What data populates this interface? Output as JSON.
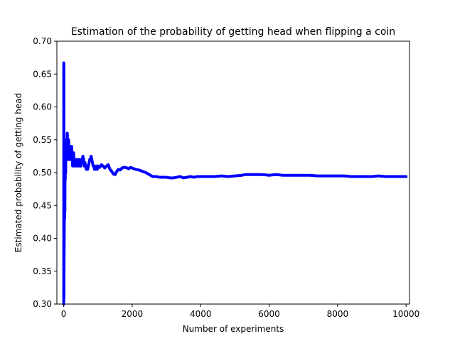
{
  "chart_data": {
    "type": "scatter",
    "title": "Estimation of the probability of getting head when flipping a coin",
    "xlabel": "Number of experiments",
    "ylabel": "Estimated probability of getting head",
    "xlim": [
      -200,
      10100
    ],
    "ylim": [
      0.3,
      0.7
    ],
    "xticks": [
      0,
      2000,
      4000,
      6000,
      8000,
      10000
    ],
    "xtick_labels": [
      "0",
      "2000",
      "4000",
      "6000",
      "8000",
      "10000"
    ],
    "yticks": [
      0.3,
      0.35,
      0.4,
      0.45,
      0.5,
      0.55,
      0.6,
      0.65,
      0.7
    ],
    "ytick_labels": [
      "0.30",
      "0.35",
      "0.40",
      "0.45",
      "0.50",
      "0.55",
      "0.60",
      "0.65",
      "0.70"
    ],
    "grid": false,
    "legend": "none",
    "marker_color": "#0000ff",
    "series": [
      {
        "x": [
          1,
          2,
          3,
          4,
          5,
          6,
          7,
          8,
          10,
          12,
          14,
          16,
          18,
          20,
          22,
          25,
          28,
          30,
          33,
          36,
          40,
          44,
          48,
          52,
          56,
          60,
          65,
          70,
          75,
          80,
          85,
          90,
          95,
          100,
          105,
          110,
          115,
          120,
          125,
          130,
          135,
          140,
          145,
          150,
          160,
          170,
          180,
          190,
          200,
          215,
          230,
          245,
          260,
          275,
          290,
          300,
          320,
          340,
          360,
          380,
          400,
          420,
          440,
          460,
          480,
          500,
          520,
          540,
          560,
          580,
          600,
          620,
          640,
          660,
          680,
          700,
          720,
          740,
          760,
          780,
          800,
          820,
          840,
          860,
          880,
          900,
          920,
          940,
          960,
          980,
          1000,
          1050,
          1100,
          1150,
          1200,
          1250,
          1300,
          1350,
          1400,
          1450,
          1500,
          1550,
          1600,
          1650,
          1700,
          1750,
          1800,
          1850,
          1900,
          1950,
          2000,
          2100,
          2200,
          2300,
          2400,
          2500,
          2600,
          2700,
          2800,
          2900,
          3000,
          3100,
          3200,
          3300,
          3400,
          3500,
          3600,
          3700,
          3800,
          3900,
          4000,
          4200,
          4400,
          4600,
          4800,
          5000,
          5200,
          5300,
          5400,
          5600,
          5800,
          6000,
          6200,
          6400,
          6600,
          6800,
          7000,
          7200,
          7400,
          7600,
          7800,
          8000,
          8200,
          8400,
          8600,
          8800,
          9000,
          9200,
          9400,
          9600,
          9800,
          10000
        ],
        "y": [
          0.3,
          0.333,
          0.667,
          0.6,
          0.31,
          0.333,
          0.314,
          0.35,
          0.36,
          0.38,
          0.4,
          0.42,
          0.43,
          0.44,
          0.45,
          0.43,
          0.46,
          0.47,
          0.44,
          0.48,
          0.5,
          0.49,
          0.51,
          0.52,
          0.5,
          0.53,
          0.54,
          0.52,
          0.55,
          0.53,
          0.54,
          0.52,
          0.55,
          0.53,
          0.56,
          0.54,
          0.55,
          0.53,
          0.52,
          0.54,
          0.53,
          0.52,
          0.55,
          0.53,
          0.52,
          0.54,
          0.53,
          0.52,
          0.53,
          0.52,
          0.54,
          0.53,
          0.51,
          0.52,
          0.53,
          0.52,
          0.51,
          0.52,
          0.51,
          0.52,
          0.51,
          0.52,
          0.51,
          0.52,
          0.51,
          0.51,
          0.52,
          0.52,
          0.525,
          0.52,
          0.51,
          0.515,
          0.51,
          0.505,
          0.51,
          0.505,
          0.51,
          0.515,
          0.52,
          0.52,
          0.525,
          0.52,
          0.515,
          0.51,
          0.51,
          0.505,
          0.505,
          0.51,
          0.51,
          0.505,
          0.51,
          0.508,
          0.512,
          0.51,
          0.507,
          0.51,
          0.512,
          0.505,
          0.502,
          0.498,
          0.497,
          0.502,
          0.505,
          0.504,
          0.507,
          0.508,
          0.508,
          0.507,
          0.506,
          0.508,
          0.507,
          0.505,
          0.504,
          0.502,
          0.5,
          0.497,
          0.494,
          0.494,
          0.493,
          0.493,
          0.493,
          0.492,
          0.492,
          0.493,
          0.494,
          0.492,
          0.493,
          0.494,
          0.493,
          0.494,
          0.494,
          0.494,
          0.494,
          0.495,
          0.494,
          0.495,
          0.496,
          0.497,
          0.497,
          0.497,
          0.497,
          0.496,
          0.497,
          0.496,
          0.496,
          0.496,
          0.496,
          0.496,
          0.495,
          0.495,
          0.495,
          0.495,
          0.495,
          0.494,
          0.494,
          0.494,
          0.494,
          0.495,
          0.494,
          0.494,
          0.494,
          0.494
        ]
      }
    ]
  }
}
